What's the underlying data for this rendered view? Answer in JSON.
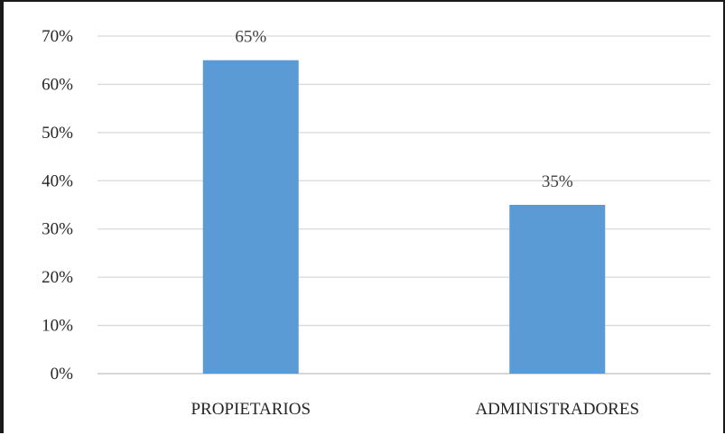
{
  "chart_data": {
    "type": "bar",
    "categories": [
      "PROPIETARIOS",
      "ADMINISTRADORES"
    ],
    "values": [
      65,
      35
    ],
    "data_labels": [
      "65%",
      "35%"
    ],
    "ylim": [
      0,
      70
    ],
    "yticks": [
      0,
      10,
      20,
      30,
      40,
      50,
      60,
      70
    ],
    "ytick_labels": [
      "0%",
      "10%",
      "20%",
      "30%",
      "40%",
      "50%",
      "60%",
      "70%"
    ],
    "grid": true,
    "legend": "none",
    "colors": {
      "bar": "#5b9bd5",
      "grid": "#d9d9d9",
      "axis": "#bfbfbf"
    }
  }
}
